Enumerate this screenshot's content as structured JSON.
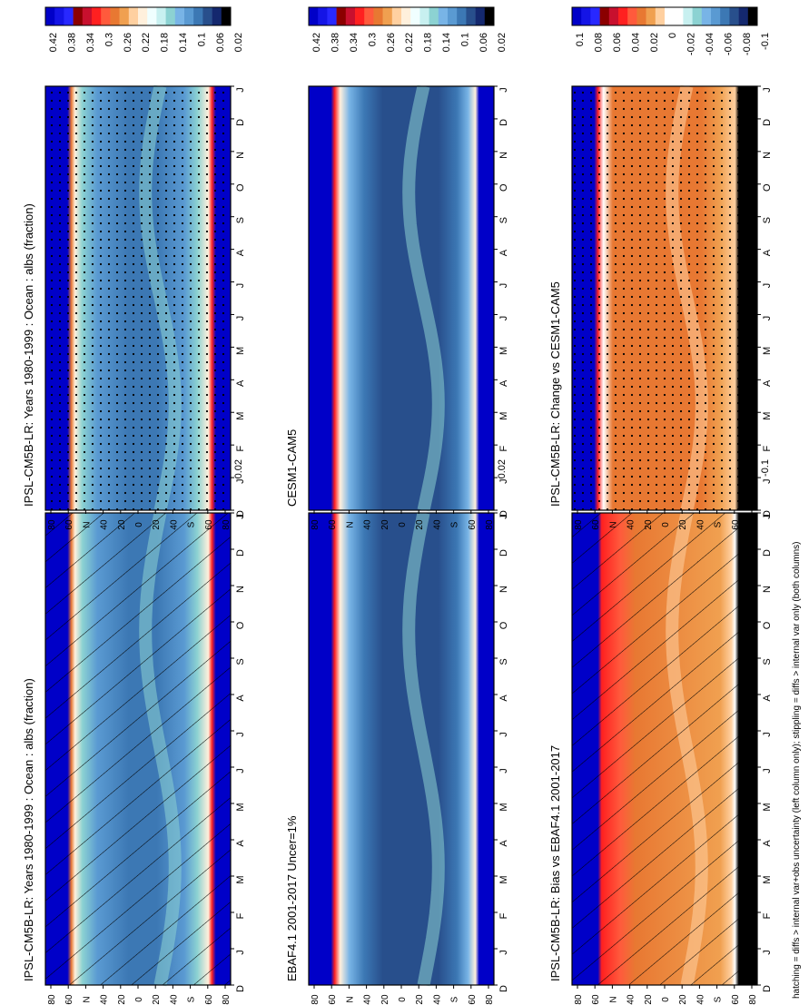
{
  "footnote": "hatching = diffs > internal var+obs uncertainty (left column only); stippling = diffs > internal var only (both columns)",
  "month_ticks": [
    "D",
    "J",
    "F",
    "M",
    "A",
    "M",
    "J",
    "J",
    "A",
    "S",
    "O",
    "N",
    "D",
    "J"
  ],
  "lat_ticks": [
    "80",
    "60",
    "N",
    "40",
    "20",
    "0",
    "20",
    "40",
    "S",
    "60",
    "80"
  ],
  "colors": {
    "abs_scale": [
      "#0000c8",
      "#1414e6",
      "#2828ff",
      "#8b0000",
      "#c8102e",
      "#ff2020",
      "#ff5a3c",
      "#e87832",
      "#f0a050",
      "#ffd0a0",
      "#fff0dc",
      "#f0ffff",
      "#c8f0f0",
      "#8cd2d2",
      "#78b4e6",
      "#5a9ad2",
      "#3c78b4",
      "#284f8c",
      "#14286e",
      "#000000"
    ],
    "diff_scale": [
      "#0000c8",
      "#1414e6",
      "#2828ff",
      "#8b0000",
      "#c8102e",
      "#ff2020",
      "#ff5a3c",
      "#e87832",
      "#f0a050",
      "#ffd0a0",
      "#ffffff",
      "#ffffff",
      "#c8f0f0",
      "#8cd2d2",
      "#78b4e6",
      "#5a9ad2",
      "#3c78b4",
      "#284f8c",
      "#14286e",
      "#000000"
    ]
  },
  "chart_data": [
    {
      "type": "heatmap",
      "title": "IPSL-CM5B-LR: Years 1980-1999 : Ocean : albs (fraction)",
      "x": [
        "D",
        "J",
        "F",
        "M",
        "A",
        "M",
        "J",
        "J",
        "A",
        "S",
        "O",
        "N",
        "D",
        "J"
      ],
      "y": [
        "80",
        "60",
        "N",
        "40",
        "20",
        "0",
        "20",
        "40",
        "S",
        "60",
        "80"
      ],
      "colorbar_labels": [
        "0.42",
        "0.38",
        "0.34",
        "0.3",
        "0.26",
        "0.22",
        "0.18",
        "0.14",
        "0.1",
        "0.06",
        "0.02"
      ],
      "overlay": "hatching"
    },
    {
      "type": "heatmap",
      "title": "IPSL-CM5B-LR: Years 1980-1999 : Ocean : albs (fraction)",
      "x": [
        "D",
        "J",
        "F",
        "M",
        "A",
        "M",
        "J",
        "J",
        "A",
        "S",
        "O",
        "N",
        "D",
        "J"
      ],
      "y": [
        "80",
        "60",
        "N",
        "40",
        "20",
        "0",
        "20",
        "40",
        "S",
        "60",
        "80"
      ],
      "colorbar_labels": [
        "0.42",
        "0.38",
        "0.34",
        "0.3",
        "0.26",
        "0.22",
        "0.18",
        "0.14",
        "0.1",
        "0.06",
        "0.02"
      ],
      "overlay": "stippling"
    },
    {
      "type": "heatmap",
      "title": "EBAF4.1 2001-2017 Uncer=1%",
      "x": [
        "D",
        "J",
        "F",
        "M",
        "A",
        "M",
        "J",
        "J",
        "A",
        "S",
        "O",
        "N",
        "D",
        "J"
      ],
      "y": [
        "80",
        "60",
        "N",
        "40",
        "20",
        "0",
        "20",
        "40",
        "S",
        "60",
        "80"
      ],
      "colorbar_labels": [
        "0.42",
        "0.38",
        "0.34",
        "0.3",
        "0.26",
        "0.22",
        "0.18",
        "0.14",
        "0.1",
        "0.06",
        "0.02"
      ],
      "overlay": "none"
    },
    {
      "type": "heatmap",
      "title": "CESM1-CAM5",
      "x": [
        "D",
        "J",
        "F",
        "M",
        "A",
        "M",
        "J",
        "J",
        "A",
        "S",
        "O",
        "N",
        "D",
        "J"
      ],
      "y": [
        "80",
        "60",
        "N",
        "40",
        "20",
        "0",
        "20",
        "40",
        "S",
        "60",
        "80"
      ],
      "colorbar_labels": [
        "0.42",
        "0.38",
        "0.34",
        "0.3",
        "0.26",
        "0.22",
        "0.18",
        "0.14",
        "0.1",
        "0.06",
        "0.02"
      ],
      "overlay": "none"
    },
    {
      "type": "heatmap",
      "title": "IPSL-CM5B-LR: Bias vs EBAF4.1 2001-2017",
      "x": [
        "D",
        "J",
        "F",
        "M",
        "A",
        "M",
        "J",
        "J",
        "A",
        "S",
        "O",
        "N",
        "D",
        "J"
      ],
      "y": [
        "80",
        "60",
        "N",
        "40",
        "20",
        "0",
        "20",
        "40",
        "S",
        "60",
        "80"
      ],
      "colorbar_labels": [
        "0.1",
        "0.08",
        "0.06",
        "0.04",
        "0.02",
        "0",
        "-0.02",
        "-0.04",
        "-0.06",
        "-0.08",
        "-0.1"
      ],
      "overlay": "hatching"
    },
    {
      "type": "heatmap",
      "title": "IPSL-CM5B-LR: Change vs CESM1-CAM5",
      "x": [
        "D",
        "J",
        "F",
        "M",
        "A",
        "M",
        "J",
        "J",
        "A",
        "S",
        "O",
        "N",
        "D",
        "J"
      ],
      "y": [
        "80",
        "60",
        "N",
        "40",
        "20",
        "0",
        "20",
        "40",
        "S",
        "60",
        "80"
      ],
      "colorbar_labels": [
        "0.1",
        "0.08",
        "0.06",
        "0.04",
        "0.02",
        "0",
        "-0.02",
        "-0.04",
        "-0.06",
        "-0.08",
        "-0.1"
      ],
      "overlay": "stippling"
    }
  ]
}
